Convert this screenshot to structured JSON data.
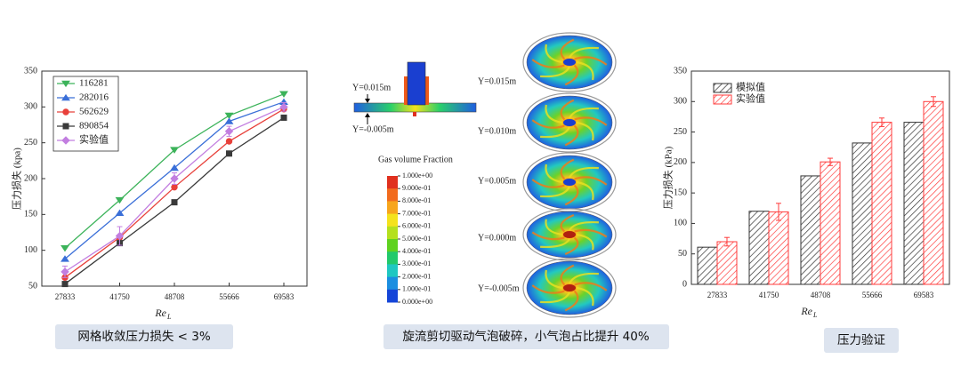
{
  "chart_data": [
    {
      "type": "line",
      "ylabel": "压力损失 (kpa)",
      "xlabel": "Re",
      "xlabel_sub": "L",
      "categories": [
        "27833",
        "41750",
        "48708",
        "55666",
        "69583"
      ],
      "ylim": [
        50,
        350
      ],
      "yticks": [
        50,
        100,
        150,
        200,
        250,
        300,
        350
      ],
      "legend": "upper-left",
      "caption": "网格收敛压力损失 < 3%",
      "series": [
        {
          "name": "116281",
          "color": "#3cb35a",
          "marker": "triangle-down",
          "values": [
            103,
            170,
            240,
            288,
            318
          ]
        },
        {
          "name": "282016",
          "color": "#3a6fd8",
          "marker": "triangle-up",
          "values": [
            88,
            152,
            215,
            280,
            307
          ]
        },
        {
          "name": "562629",
          "color": "#e8403a",
          "marker": "circle",
          "values": [
            62,
            118,
            188,
            252,
            297
          ]
        },
        {
          "name": "890854",
          "color": "#3a3a3a",
          "marker": "square",
          "values": [
            53,
            110,
            167,
            235,
            285
          ]
        },
        {
          "name": "实验值",
          "color": "#c27ee0",
          "marker": "diamond",
          "values": [
            70,
            120,
            200,
            266,
            300
          ],
          "error": [
            8,
            13,
            8,
            7,
            6
          ]
        }
      ]
    },
    {
      "type": "bar",
      "ylabel": "压力损失 (kPa)",
      "xlabel": "Re",
      "xlabel_sub": "L",
      "categories": [
        "27833",
        "41750",
        "48708",
        "55666",
        "69583"
      ],
      "ylim": [
        0,
        350
      ],
      "yticks": [
        0,
        50,
        100,
        150,
        200,
        250,
        300,
        350
      ],
      "legend": "upper-left",
      "caption": "压力验证",
      "series": [
        {
          "name": "模拟值",
          "color": "#333333",
          "values": [
            61,
            120,
            178,
            232,
            266
          ]
        },
        {
          "name": "实验值",
          "color": "#ff3b3b",
          "values": [
            70,
            119,
            201,
            266,
            300
          ],
          "error": [
            7,
            14,
            6,
            7,
            8
          ]
        }
      ]
    }
  ],
  "diagram": {
    "section_labels": [
      "Y=0.015m",
      "Y=-0.005m"
    ],
    "colorbar": {
      "title": "Gas volume Fraction",
      "ticks": [
        {
          "value": 1,
          "label": "1.000e+00"
        },
        {
          "value": 0.9,
          "label": "9.000e-01"
        },
        {
          "value": 0.8,
          "label": "8.000e-01"
        },
        {
          "value": 0.7,
          "label": "7.000e-01"
        },
        {
          "value": 0.6,
          "label": "6.000e-01"
        },
        {
          "value": 0.5,
          "label": "5.000e-01"
        },
        {
          "value": 0.4,
          "label": "4.000e-01"
        },
        {
          "value": 0.3,
          "label": "3.000e-01"
        },
        {
          "value": 0.2,
          "label": "2.000e-01"
        },
        {
          "value": 0.1,
          "label": "1.000e-01"
        },
        {
          "value": 0,
          "label": "0.000e+00"
        }
      ]
    },
    "slice_labels": [
      "Y=0.015m",
      "Y=0.010m",
      "Y=0.005m",
      "Y=0.000m",
      "Y=-0.005m"
    ],
    "caption": "旋流剪切驱动气泡破碎，小气泡占比提升 40%"
  }
}
